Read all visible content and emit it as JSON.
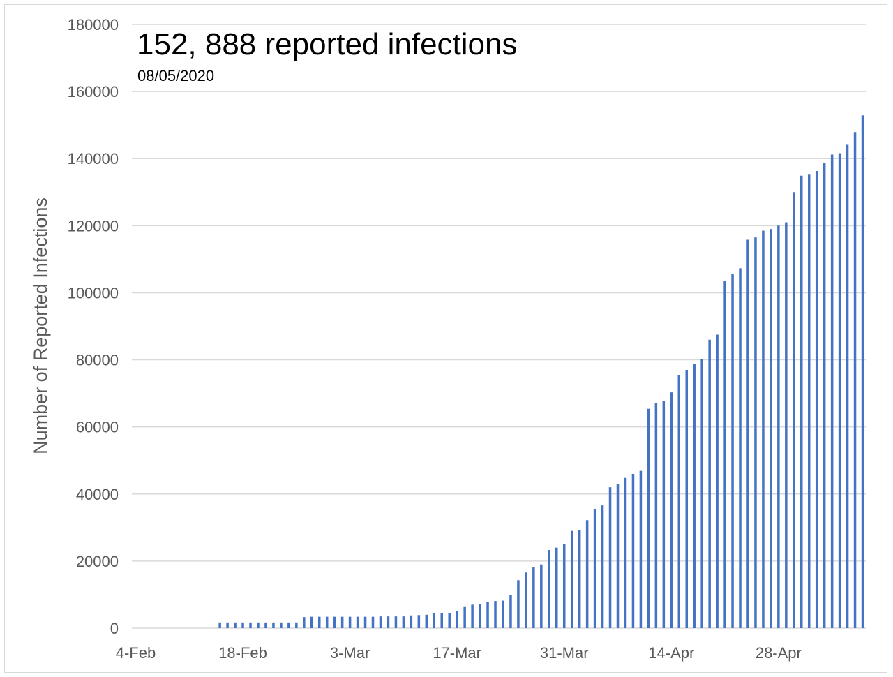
{
  "chart_data": {
    "type": "bar",
    "title": "152, 888 reported infections",
    "subtitle": "08/05/2020",
    "xlabel": "",
    "ylabel": "Number of Reported Infections",
    "ylim": [
      0,
      180000
    ],
    "yticks": [
      "0",
      "20000",
      "40000",
      "60000",
      "80000",
      "100000",
      "120000",
      "140000",
      "160000",
      "180000"
    ],
    "xticks": [
      "4-Feb",
      "18-Feb",
      "3-Mar",
      "17-Mar",
      "31-Mar",
      "14-Apr",
      "28-Apr"
    ],
    "grid": true,
    "legend": "none",
    "color": "#4472c4",
    "series": [
      {
        "values": [
          0,
          0,
          0,
          0,
          0,
          0,
          0,
          0,
          0,
          0,
          0,
          1700,
          1700,
          1700,
          1700,
          1700,
          1700,
          1700,
          1700,
          1700,
          1700,
          1700,
          3300,
          3400,
          3400,
          3400,
          3400,
          3400,
          3400,
          3400,
          3400,
          3400,
          3500,
          3500,
          3500,
          3500,
          3800,
          3900,
          4000,
          4500,
          4500,
          4500,
          5000,
          6500,
          7000,
          7200,
          7800,
          8100,
          8200,
          9800,
          14300,
          16600,
          18300,
          19000,
          23300,
          24000,
          25000,
          29000,
          29200,
          32200,
          35500,
          36600,
          42000,
          43000,
          44800,
          46000,
          46900,
          65400,
          67000,
          67700,
          70300,
          75500,
          77000,
          78700,
          80300,
          86000,
          87500,
          103600,
          105500,
          107300,
          115800,
          116500,
          118500,
          119000,
          120000,
          121000,
          130000,
          134900,
          135200,
          136300,
          138800,
          141200,
          141600,
          144100,
          147900,
          152888
        ]
      }
    ]
  }
}
